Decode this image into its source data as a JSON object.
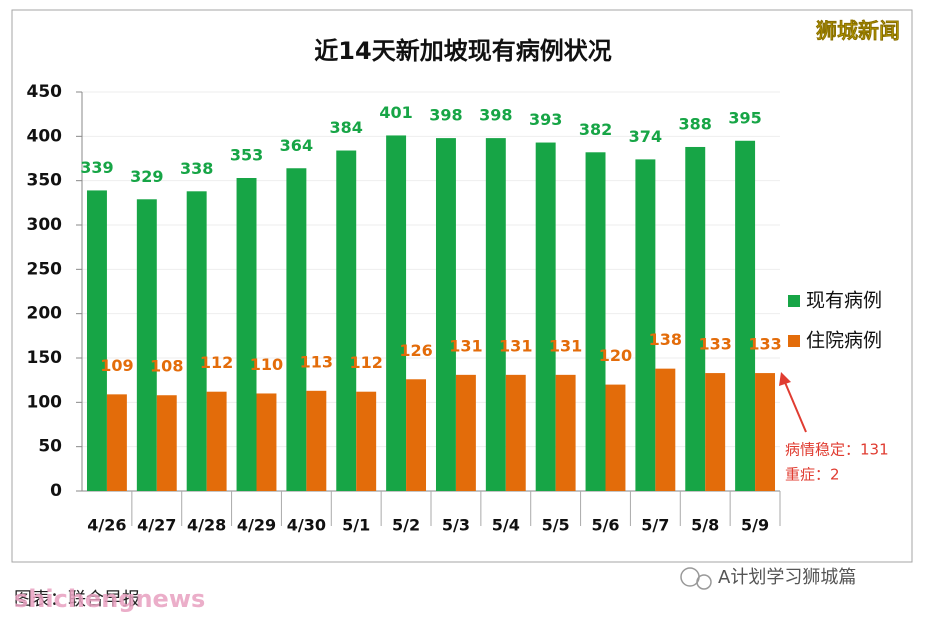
{
  "chart_data": {
    "type": "bar",
    "title": "近14天新加坡现有病例状况",
    "categories": [
      "4/26",
      "4/27",
      "4/28",
      "4/29",
      "4/30",
      "5/1",
      "5/2",
      "5/3",
      "5/4",
      "5/5",
      "5/6",
      "5/7",
      "5/8",
      "5/9"
    ],
    "series": [
      {
        "name": "现有病例",
        "color": "#17a546",
        "values": [
          339,
          329,
          338,
          353,
          364,
          384,
          401,
          398,
          398,
          393,
          382,
          374,
          388,
          395
        ]
      },
      {
        "name": "住院病例",
        "color": "#e36c0a",
        "values": [
          109,
          108,
          112,
          110,
          113,
          112,
          126,
          131,
          131,
          131,
          120,
          138,
          133,
          133
        ]
      }
    ],
    "ylim": [
      0,
      450
    ],
    "yticks": [
      0,
      50,
      100,
      150,
      200,
      250,
      300,
      350,
      400,
      450
    ],
    "grid": true,
    "legend": "right",
    "annotations": [
      "病情稳定：131",
      "重症：2"
    ]
  },
  "watermark": "狮城新闻",
  "footer": {
    "source": "图表：联合早报",
    "overlay": "shichengnews",
    "account": "A计划学习狮城篇"
  }
}
